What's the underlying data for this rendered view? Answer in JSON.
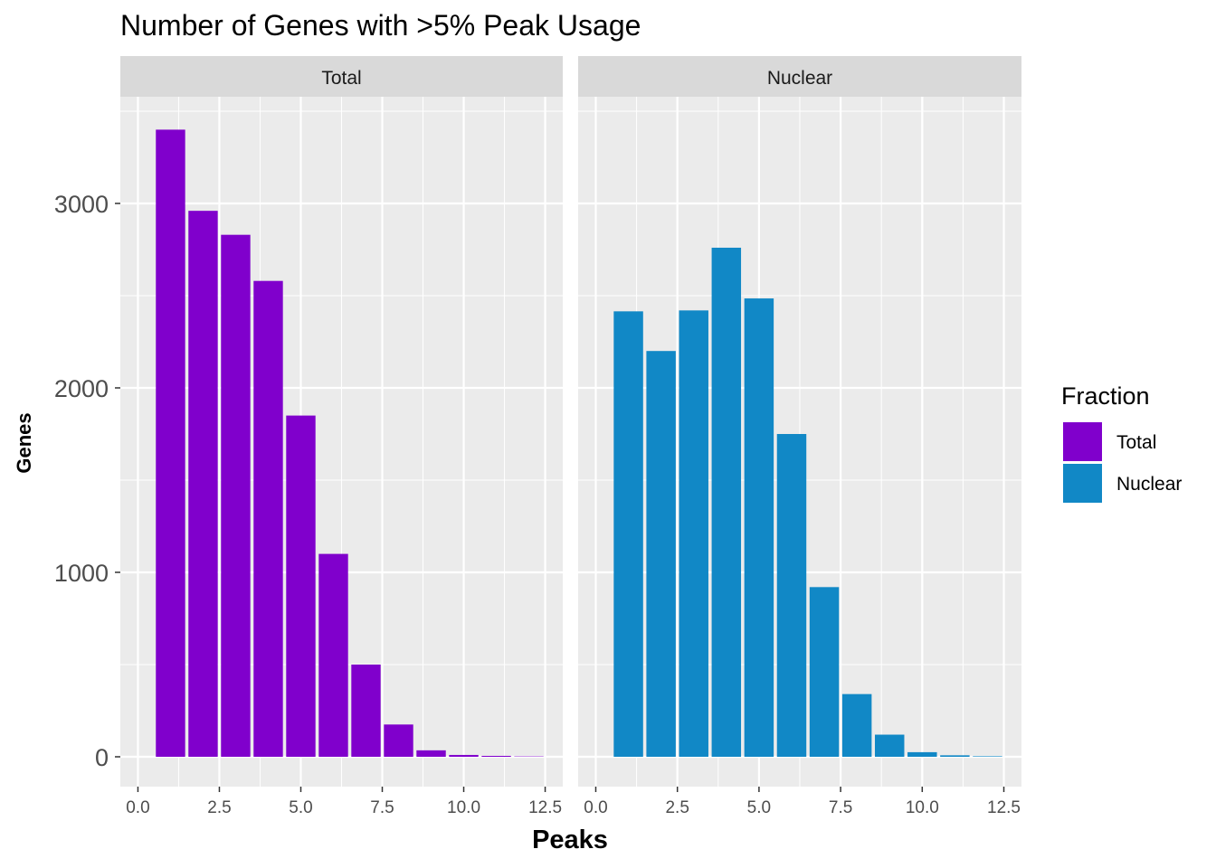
{
  "chart_data": {
    "type": "bar",
    "title": "Number of Genes with >5% Peak Usage",
    "xlabel": "Peaks",
    "ylabel": "Genes",
    "xlim": [
      0,
      12.5
    ],
    "ylim": [
      0,
      3500
    ],
    "x_ticks": [
      0,
      2.5,
      5,
      7.5,
      10,
      12.5
    ],
    "x_tick_labels": [
      "0.0",
      "2.5",
      "5.0",
      "7.5",
      "10.0",
      "12.5"
    ],
    "y_ticks": [
      0,
      1000,
      2000,
      3000
    ],
    "y_tick_labels": [
      "0",
      "1000",
      "2000",
      "3000"
    ],
    "grid": true,
    "facets": [
      "Total",
      "Nuclear"
    ],
    "legend": {
      "title": "Fraction",
      "position": "right",
      "entries": [
        {
          "label": "Total",
          "color": "#8000cc"
        },
        {
          "label": "Nuclear",
          "color": "#1188c6"
        }
      ]
    },
    "x": [
      1,
      2,
      3,
      4,
      5,
      6,
      7,
      8,
      9,
      10,
      11,
      12
    ],
    "series": [
      {
        "name": "Total",
        "color": "#8000cc",
        "values": [
          3400,
          2960,
          2830,
          2580,
          1850,
          1100,
          500,
          175,
          35,
          10,
          5,
          2
        ]
      },
      {
        "name": "Nuclear",
        "color": "#1188c6",
        "values": [
          2415,
          2200,
          2420,
          2760,
          2485,
          1750,
          920,
          340,
          120,
          25,
          8,
          3
        ]
      }
    ]
  }
}
